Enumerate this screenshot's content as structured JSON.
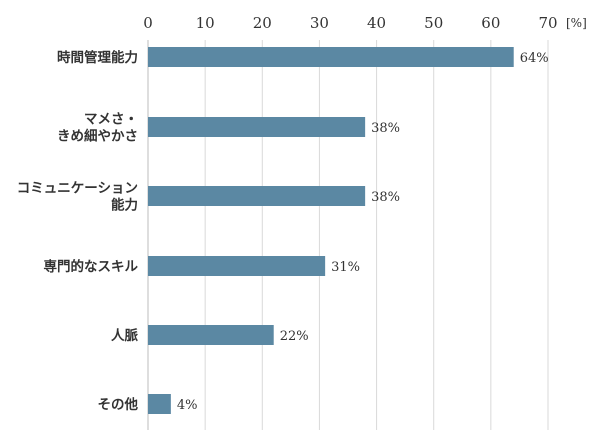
{
  "chart_data": {
    "type": "bar",
    "orientation": "horizontal",
    "title": "",
    "xlabel": "",
    "ylabel": "",
    "unit": "[%]",
    "xlim": [
      0,
      70
    ],
    "xticks": [
      0,
      10,
      20,
      30,
      40,
      50,
      60,
      70
    ],
    "grid": "vertical",
    "bar_color": "#5b88a3",
    "categories": [
      "時間管理能力",
      "マメさ・\nきめ細やかさ",
      "コミュニケーション\n能力",
      "専門的なスキル",
      "人脈",
      "その他"
    ],
    "values": [
      64,
      38,
      38,
      31,
      22,
      4
    ],
    "value_labels": [
      "64%",
      "38%",
      "38%",
      "31%",
      "22%",
      "4%"
    ]
  }
}
